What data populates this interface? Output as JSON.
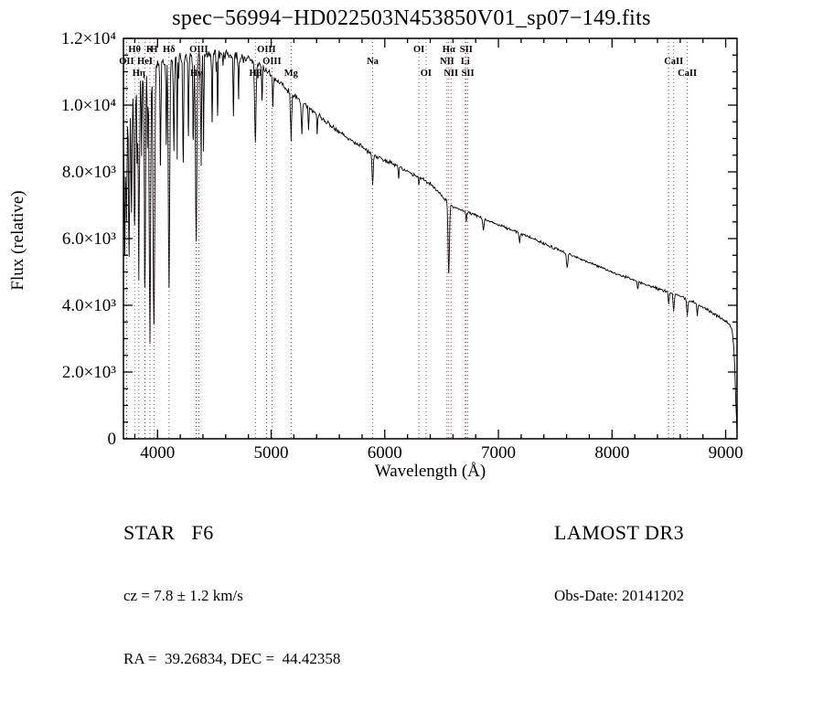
{
  "title": "spec−56994−HD022503N453850V01_sp07−149.fits",
  "footer": {
    "class_label": "STAR   F6",
    "cz": "cz = 7.8 ± 1.2 km/s",
    "coords": "RA =  39.26834, DEC =  44.42358",
    "survey": "LAMOST DR3",
    "obs_date": "Obs-Date: 20141202"
  },
  "chart_data": {
    "type": "line",
    "title": "spec−56994−HD022503N453850V01_sp07−149.fits",
    "xlabel": "Wavelength (Å)",
    "ylabel": "Flux (relative)",
    "xlim": [
      3700,
      9100
    ],
    "ylim": [
      0,
      12000
    ],
    "grid": false,
    "x_ticks": [
      {
        "value": 4000,
        "label": "4000"
      },
      {
        "value": 5000,
        "label": "5000"
      },
      {
        "value": 6000,
        "label": "6000"
      },
      {
        "value": 7000,
        "label": "7000"
      },
      {
        "value": 8000,
        "label": "8000"
      },
      {
        "value": 9000,
        "label": "9000"
      }
    ],
    "y_ticks": [
      {
        "value": 0,
        "label": "0"
      },
      {
        "value": 2000,
        "label": "2.0×10³"
      },
      {
        "value": 4000,
        "label": "4.0×10³"
      },
      {
        "value": 6000,
        "label": "6.0×10³"
      },
      {
        "value": 8000,
        "label": "8.0×10³"
      },
      {
        "value": 10000,
        "label": "1.0×10⁴"
      },
      {
        "value": 12000,
        "label": "1.2×10⁴"
      }
    ],
    "x_minor_step": 200,
    "y_minor_step": 500,
    "series_color": "#000000",
    "marker_color": "#9b3f3f",
    "label_color": "#111111",
    "spectral_lines": [
      {
        "wavelength": 3727,
        "label": "OII",
        "row": 2
      },
      {
        "wavelength": 3798,
        "label": "Hθ",
        "row": 1
      },
      {
        "wavelength": 3835,
        "label": "Hη",
        "row": 3
      },
      {
        "wavelength": 3889,
        "label": "HeI",
        "row": 2
      },
      {
        "wavelength": 3933,
        "label": "K",
        "row": 1
      },
      {
        "wavelength": 3968,
        "label": "H",
        "row": 1
      },
      {
        "wavelength": 4101,
        "label": "Hδ",
        "row": 1
      },
      {
        "wavelength": 4340,
        "label": "Hγ",
        "row": 3
      },
      {
        "wavelength": 4363,
        "label": "OIII",
        "row": 1
      },
      {
        "wavelength": 4861,
        "label": "Hβ",
        "row": 3
      },
      {
        "wavelength": 4959,
        "label": "OIII",
        "row": 1
      },
      {
        "wavelength": 5007,
        "label": "OIII",
        "row": 2
      },
      {
        "wavelength": 5175,
        "label": "Mg",
        "row": 3
      },
      {
        "wavelength": 5893,
        "label": "Na",
        "row": 2
      },
      {
        "wavelength": 6300,
        "label": "OI",
        "row": 1
      },
      {
        "wavelength": 6363,
        "label": "OI",
        "row": 3
      },
      {
        "wavelength": 6548,
        "label": "NII",
        "row": 2
      },
      {
        "wavelength": 6563,
        "label": "Hα",
        "row": 1
      },
      {
        "wavelength": 6583,
        "label": "NII",
        "row": 3
      },
      {
        "wavelength": 6708,
        "label": "Li",
        "row": 2
      },
      {
        "wavelength": 6716,
        "label": "SII",
        "row": 1
      },
      {
        "wavelength": 6731,
        "label": "SII",
        "row": 3
      },
      {
        "wavelength": 8498,
        "label": "",
        "row": 0
      },
      {
        "wavelength": 8542,
        "label": "CaII",
        "row": 2
      },
      {
        "wavelength": 8662,
        "label": "CaII",
        "row": 3
      }
    ],
    "continuum": [
      [
        3700,
        8800
      ],
      [
        3720,
        9200
      ],
      [
        3740,
        9600
      ],
      [
        3760,
        9850
      ],
      [
        3780,
        10150
      ],
      [
        3800,
        10400
      ],
      [
        3850,
        10750
      ],
      [
        3900,
        11000
      ],
      [
        3950,
        11150
      ],
      [
        4000,
        11250
      ],
      [
        4100,
        11350
      ],
      [
        4200,
        11450
      ],
      [
        4300,
        11500
      ],
      [
        4400,
        11550
      ],
      [
        4500,
        11550
      ],
      [
        4600,
        11500
      ],
      [
        4700,
        11450
      ],
      [
        4800,
        11350
      ],
      [
        4900,
        11200
      ],
      [
        5000,
        10900
      ],
      [
        5100,
        10600
      ],
      [
        5200,
        10300
      ],
      [
        5300,
        10000
      ],
      [
        5400,
        9750
      ],
      [
        5500,
        9450
      ],
      [
        5600,
        9200
      ],
      [
        5700,
        8950
      ],
      [
        5800,
        8750
      ],
      [
        5900,
        8500
      ],
      [
        6000,
        8350
      ],
      [
        6100,
        8200
      ],
      [
        6200,
        8000
      ],
      [
        6300,
        7850
      ],
      [
        6400,
        7650
      ],
      [
        6500,
        7300
      ],
      [
        6600,
        6950
      ],
      [
        6700,
        6820
      ],
      [
        6800,
        6700
      ],
      [
        6900,
        6550
      ],
      [
        7000,
        6420
      ],
      [
        7100,
        6280
      ],
      [
        7200,
        6150
      ],
      [
        7300,
        6000
      ],
      [
        7400,
        5850
      ],
      [
        7500,
        5700
      ],
      [
        7600,
        5560
      ],
      [
        7700,
        5420
      ],
      [
        7800,
        5280
      ],
      [
        7900,
        5140
      ],
      [
        8000,
        5000
      ],
      [
        8100,
        4870
      ],
      [
        8200,
        4750
      ],
      [
        8300,
        4620
      ],
      [
        8400,
        4500
      ],
      [
        8500,
        4400
      ],
      [
        8600,
        4280
      ],
      [
        8700,
        4120
      ],
      [
        8800,
        3950
      ],
      [
        8900,
        3750
      ],
      [
        9000,
        3520
      ],
      [
        9030,
        3430
      ],
      [
        9055,
        3300
      ],
      [
        9075,
        2600
      ],
      [
        9088,
        1200
      ],
      [
        9100,
        120
      ]
    ],
    "absorption": [
      [
        3712,
        3600,
        4
      ],
      [
        3727,
        2600,
        4
      ],
      [
        3750,
        4300,
        4
      ],
      [
        3771,
        3200,
        4
      ],
      [
        3798,
        4000,
        5
      ],
      [
        3820,
        2200,
        3
      ],
      [
        3835,
        5200,
        5
      ],
      [
        3860,
        2400,
        3
      ],
      [
        3889,
        6500,
        5
      ],
      [
        3912,
        2200,
        3
      ],
      [
        3933,
        8200,
        6
      ],
      [
        3968,
        8000,
        7
      ],
      [
        4026,
        3000,
        4
      ],
      [
        4077,
        2400,
        3
      ],
      [
        4101,
        6800,
        6
      ],
      [
        4144,
        2800,
        4
      ],
      [
        4173,
        2200,
        3
      ],
      [
        4226,
        3200,
        4
      ],
      [
        4272,
        2500,
        3
      ],
      [
        4315,
        2500,
        4
      ],
      [
        4340,
        5600,
        6
      ],
      [
        4383,
        3000,
        4
      ],
      [
        4405,
        2400,
        3
      ],
      [
        4481,
        2100,
        3
      ],
      [
        4528,
        1800,
        3
      ],
      [
        4668,
        1700,
        3
      ],
      [
        4713,
        1300,
        3
      ],
      [
        4861,
        2300,
        6
      ],
      [
        4920,
        1100,
        3
      ],
      [
        5015,
        900,
        3
      ],
      [
        5175,
        1400,
        5
      ],
      [
        5270,
        1000,
        4
      ],
      [
        5329,
        700,
        3
      ],
      [
        5405,
        600,
        3
      ],
      [
        5893,
        900,
        5
      ],
      [
        6122,
        400,
        3
      ],
      [
        6300,
        250,
        3
      ],
      [
        6563,
        2150,
        6
      ],
      [
        6717,
        280,
        3
      ],
      [
        6868,
        380,
        5
      ],
      [
        7186,
        280,
        5
      ],
      [
        7605,
        420,
        6
      ],
      [
        8227,
        260,
        4
      ],
      [
        8498,
        380,
        4
      ],
      [
        8542,
        520,
        5
      ],
      [
        8662,
        480,
        5
      ],
      [
        8750,
        320,
        4
      ]
    ],
    "noise_profile": [
      [
        3700,
        250
      ],
      [
        4300,
        230
      ],
      [
        4700,
        170
      ],
      [
        5000,
        120
      ],
      [
        5400,
        95
      ],
      [
        5800,
        75
      ],
      [
        6200,
        65
      ],
      [
        6700,
        55
      ],
      [
        7200,
        48
      ],
      [
        7800,
        45
      ],
      [
        8400,
        48
      ],
      [
        8800,
        52
      ],
      [
        9100,
        55
      ]
    ],
    "noise_seed": 20141202
  }
}
